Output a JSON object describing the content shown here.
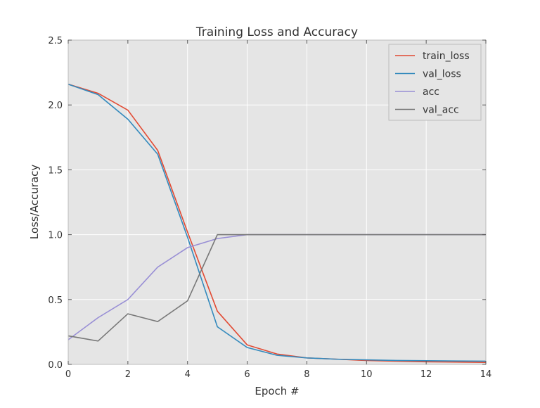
{
  "chart_data": {
    "type": "line",
    "title": "Training Loss and Accuracy",
    "xlabel": "Epoch #",
    "ylabel": "Loss/Accuracy",
    "xlim": [
      0,
      14
    ],
    "ylim": [
      0,
      2.5
    ],
    "xticks": [
      0,
      2,
      4,
      6,
      8,
      10,
      12,
      14
    ],
    "yticks": [
      0.0,
      0.5,
      1.0,
      1.5,
      2.0,
      2.5
    ],
    "ytick_labels": [
      "0.0",
      "0.5",
      "1.0",
      "1.5",
      "2.0",
      "2.5"
    ],
    "grid": true,
    "legend_placement": "top-right",
    "x": [
      0,
      1,
      2,
      3,
      4,
      5,
      6,
      7,
      8,
      9,
      10,
      11,
      12,
      13,
      14
    ],
    "series": [
      {
        "name": "train_loss",
        "color": "#e24a33",
        "values": [
          2.16,
          2.09,
          1.96,
          1.65,
          1.02,
          0.41,
          0.15,
          0.08,
          0.05,
          0.04,
          0.03,
          0.025,
          0.02,
          0.018,
          0.015
        ]
      },
      {
        "name": "val_loss",
        "color": "#348abd",
        "values": [
          2.16,
          2.08,
          1.89,
          1.62,
          0.98,
          0.29,
          0.13,
          0.07,
          0.05,
          0.04,
          0.035,
          0.03,
          0.028,
          0.026,
          0.025
        ]
      },
      {
        "name": "acc",
        "color": "#988ed5",
        "values": [
          0.19,
          0.36,
          0.5,
          0.75,
          0.9,
          0.97,
          1.0,
          1.0,
          1.0,
          1.0,
          1.0,
          1.0,
          1.0,
          1.0,
          1.0
        ]
      },
      {
        "name": "val_acc",
        "color": "#777777",
        "values": [
          0.22,
          0.18,
          0.39,
          0.33,
          0.49,
          1.0,
          1.0,
          1.0,
          1.0,
          1.0,
          1.0,
          1.0,
          1.0,
          1.0,
          1.0
        ]
      }
    ]
  }
}
